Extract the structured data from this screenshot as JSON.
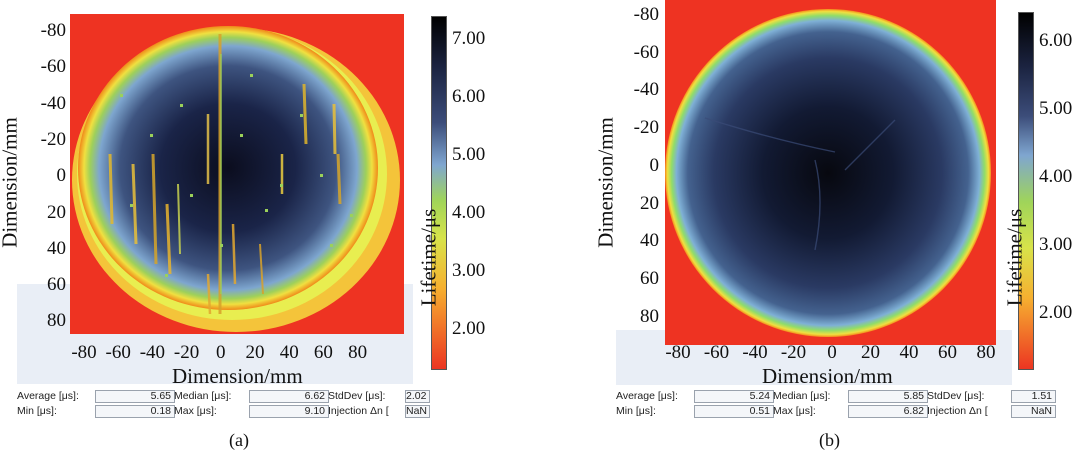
{
  "chart_data": [
    {
      "type": "heatmap",
      "panel": "(a)",
      "xlabel": "Dimension/mm",
      "ylabel": "Dimension/mm",
      "colorbar_label": "Lifetime/μs",
      "x_ticks": [
        "-80",
        "-60",
        "-40",
        "-20",
        "0",
        "20",
        "40",
        "60",
        "80"
      ],
      "y_ticks": [
        "-80",
        "-60",
        "-40",
        "-20",
        "0",
        "20",
        "40",
        "60",
        "80"
      ],
      "colorbar_ticks": [
        "7.00",
        "6.00",
        "5.00",
        "4.00",
        "3.00",
        "2.00"
      ],
      "colorbar_range": [
        1.2,
        7.4
      ],
      "stats": {
        "average_label": "Average [μs]:",
        "average": "5.65",
        "median_label": "Median [μs]:",
        "median": "6.62",
        "stddev_label": "StdDev [μs]:",
        "stddev": "2.02",
        "min_label": "Min [μs]:",
        "min": "0.18",
        "max_label": "Max [μs]:",
        "max": "9.10",
        "injection_label": "Injection Δn [",
        "injection": "NaN"
      },
      "caption": "(a)"
    },
    {
      "type": "heatmap",
      "panel": "(b)",
      "xlabel": "Dimension/mm",
      "ylabel": "Dimension/mm",
      "colorbar_label": "Lifetime/μs",
      "x_ticks": [
        "-80",
        "-60",
        "-40",
        "-20",
        "0",
        "20",
        "40",
        "60",
        "80"
      ],
      "y_ticks": [
        "-80",
        "-60",
        "-40",
        "-20",
        "0",
        "20",
        "40",
        "60",
        "80"
      ],
      "colorbar_ticks": [
        "6.00",
        "5.00",
        "4.00",
        "3.00",
        "2.00"
      ],
      "colorbar_range": [
        1.2,
        6.5
      ],
      "stats": {
        "average_label": "Average [μs]:",
        "average": "5.24",
        "median_label": "Median [μs]:",
        "median": "5.85",
        "stddev_label": "StdDev [μs]:",
        "stddev": "1.51",
        "min_label": "Min [μs]:",
        "min": "0.51",
        "max_label": "Max [μs]:",
        "max": "6.82",
        "injection_label": "Injection Δn [",
        "injection": "NaN"
      },
      "caption": "(b)"
    }
  ]
}
